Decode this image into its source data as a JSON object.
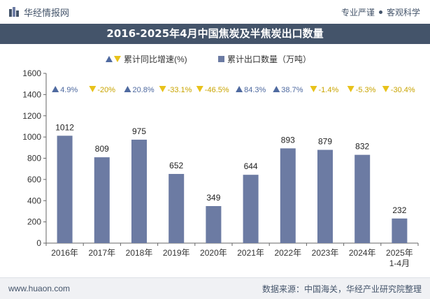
{
  "header": {
    "brand": "华经情报网",
    "tags": [
      "专业严谨",
      "客观科学"
    ]
  },
  "footer": {
    "url": "www.huaon.com",
    "source": "数据来源：中国海关，华经产业研究院整理"
  },
  "colors": {
    "bar": "#6c7ba3",
    "growth_up": "#4f6aa0",
    "growth_down": "#e8c21a",
    "header_bg": "#44546a"
  },
  "chart_data": {
    "type": "bar",
    "title": "2016-2025年4月中国焦炭及半焦炭出口数量",
    "categories": [
      "2016年",
      "2017年",
      "2018年",
      "2019年",
      "2020年",
      "2021年",
      "2022年",
      "2023年",
      "2024年",
      "2025年\n1-4月"
    ],
    "series": [
      {
        "name": "累计出口数量（万吨）",
        "values": [
          1012,
          809,
          975,
          652,
          349,
          644,
          893,
          879,
          832,
          232
        ]
      },
      {
        "name": "累计同比增速(%)",
        "values": [
          4.9,
          -20,
          20.8,
          -33.1,
          -46.5,
          84.3,
          38.7,
          -1.4,
          -5.3,
          -30.4
        ]
      }
    ],
    "growth_labels": [
      "4.9%",
      "-20%",
      "20.8%",
      "-33.1%",
      "-46.5%",
      "84.3%",
      "38.7%",
      "-1.4%",
      "-5.3%",
      "-30.4%"
    ],
    "ylim": [
      0,
      1600
    ],
    "yticks": [
      0,
      200,
      400,
      600,
      800,
      1000,
      1200,
      1400,
      1600
    ],
    "legend": "top-center",
    "grid": false
  }
}
